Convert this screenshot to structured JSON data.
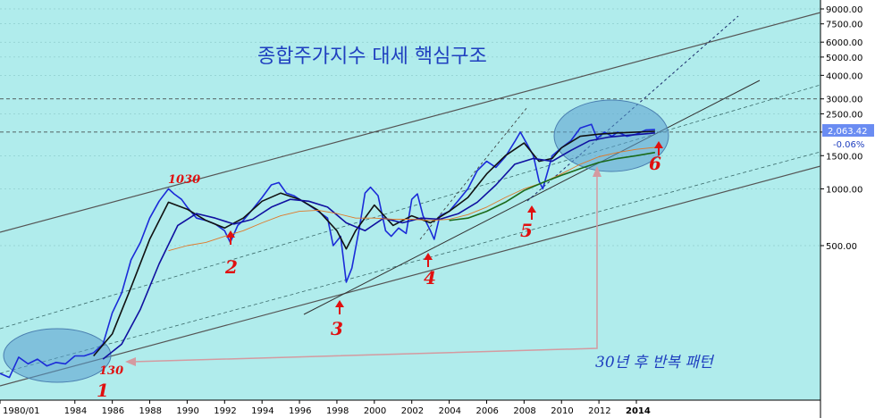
{
  "chart_data": {
    "type": "line",
    "title": "종합주가지수 대세 핵심구조",
    "scale": "log",
    "background": "#b0ecec",
    "yticks": [
      "9000.00",
      "7500.00",
      "6000.00",
      "5000.00",
      "4000.00",
      "3000.00",
      "2500.00",
      "2000.00",
      "1500.00",
      "1000.00",
      "500.00"
    ],
    "ytick_values": [
      9000,
      7500,
      6000,
      5000,
      4000,
      3000,
      2500,
      2000,
      1500,
      1000,
      500
    ],
    "ylim": [
      80,
      10000
    ],
    "xlim": [
      1980.0,
      2016.2
    ],
    "xticks": [
      "1980/01",
      "1984",
      "1986",
      "1988",
      "1990",
      "1992",
      "1994",
      "1996",
      "1998",
      "2000",
      "2002",
      "2004",
      "2006",
      "2008",
      "2010",
      "2012",
      "2014"
    ],
    "xtick_values": [
      1980.0,
      1984.0,
      1986.0,
      1988.0,
      1990.0,
      1992.0,
      1994.0,
      1996.0,
      1998.0,
      2000.0,
      2002.0,
      2004.0,
      2006.0,
      2008.0,
      2010.0,
      2012.0,
      2014.0
    ],
    "last_value": "2,063.42",
    "last_change": "-0.06%",
    "series": [
      {
        "color": "#1b2bd8",
        "x": [
          1980.0,
          1980.5,
          1981.0,
          1981.5,
          1982.0,
          1982.5,
          1983.0,
          1983.5,
          1984.0,
          1984.5,
          1985.0,
          1985.5,
          1986.0,
          1986.5,
          1987.0,
          1987.5,
          1988.0,
          1988.5,
          1989.0,
          1989.3,
          1989.7,
          1990.0,
          1990.5,
          1991.0,
          1991.5,
          1992.0,
          1992.3,
          1992.7,
          1993.0,
          1993.5,
          1994.0,
          1994.5,
          1994.9,
          1995.3,
          1995.7,
          1996.0,
          1996.5,
          1997.0,
          1997.5,
          1997.8,
          1998.2,
          1998.5,
          1998.8,
          1999.2,
          1999.5,
          1999.8,
          2000.2,
          2000.6,
          2000.9,
          2001.3,
          2001.7,
          2002.0,
          2002.3,
          2002.6,
          2003.0,
          2003.2,
          2003.5,
          2004.0,
          2004.5,
          2005.0,
          2005.5,
          2006.0,
          2006.5,
          2007.0,
          2007.5,
          2007.8,
          2008.2,
          2008.5,
          2008.8,
          2009.0,
          2009.5,
          2010.0,
          2010.5,
          2011.0,
          2011.3,
          2011.6,
          2011.9,
          2012.3,
          2012.7,
          2013.0,
          2013.5,
          2014.0,
          2014.5,
          2015.0
        ],
        "values": [
          105,
          100,
          128,
          118,
          125,
          115,
          120,
          118,
          130,
          130,
          135,
          150,
          220,
          280,
          420,
          520,
          700,
          860,
          1000,
          940,
          880,
          800,
          700,
          680,
          650,
          600,
          520,
          640,
          680,
          780,
          900,
          1050,
          1080,
          950,
          920,
          880,
          820,
          760,
          700,
          500,
          560,
          320,
          380,
          620,
          950,
          1020,
          920,
          600,
          560,
          620,
          580,
          880,
          940,
          720,
          600,
          540,
          720,
          760,
          870,
          1000,
          1250,
          1400,
          1300,
          1480,
          1780,
          2000,
          1700,
          1500,
          1100,
          1000,
          1500,
          1650,
          1800,
          2100,
          2150,
          2200,
          1850,
          2000,
          1900,
          2000,
          1900,
          1950,
          2050,
          2063
        ]
      },
      {
        "color": "#111111",
        "x": [
          1985.0,
          1986.0,
          1987.0,
          1988.0,
          1989.0,
          1990.0,
          1991.0,
          1992.0,
          1993.0,
          1994.0,
          1995.0,
          1996.0,
          1997.0,
          1998.0,
          1998.5,
          1999.0,
          2000.0,
          2001.0,
          2002.0,
          2003.0,
          2004.0,
          2005.0,
          2006.0,
          2007.0,
          2008.0,
          2008.8,
          2009.5,
          2010.0,
          2011.0,
          2012.0,
          2013.0,
          2014.0,
          2015.0
        ],
        "values": [
          130,
          170,
          300,
          540,
          850,
          780,
          680,
          620,
          700,
          860,
          950,
          880,
          770,
          600,
          480,
          600,
          820,
          640,
          720,
          660,
          760,
          900,
          1200,
          1500,
          1750,
          1400,
          1450,
          1650,
          1900,
          1950,
          1980,
          2000,
          2020
        ]
      },
      {
        "color": "#1010a0",
        "x": [
          1985.5,
          1986.5,
          1987.5,
          1988.5,
          1989.5,
          1990.5,
          1991.5,
          1992.5,
          1993.5,
          1994.5,
          1995.5,
          1996.5,
          1997.5,
          1998.5,
          1999.5,
          2000.5,
          2001.5,
          2002.5,
          2003.5,
          2004.5,
          2005.5,
          2006.5,
          2007.5,
          2008.5,
          2009.5,
          2010.5,
          2011.5,
          2012.5,
          2013.5,
          2014.5,
          2015.0
        ],
        "values": [
          125,
          150,
          230,
          400,
          640,
          740,
          700,
          650,
          690,
          800,
          880,
          860,
          800,
          660,
          600,
          700,
          660,
          700,
          690,
          740,
          850,
          1050,
          1350,
          1450,
          1400,
          1600,
          1800,
          1880,
          1920,
          1960,
          1980
        ]
      },
      {
        "color": "#e07828",
        "x": [
          1989.0,
          1990.0,
          1991.0,
          1992.0,
          1993.0,
          1994.0,
          1995.0,
          1996.0,
          1997.0,
          1998.0,
          1999.0,
          2000.0,
          2001.0,
          2002.0,
          2003.0,
          2004.0,
          2005.0,
          2006.0,
          2007.0,
          2008.0,
          2009.0,
          2010.0,
          2011.0,
          2012.0,
          2013.0,
          2014.0,
          2015.0
        ],
        "values": [
          470,
          500,
          520,
          560,
          600,
          660,
          720,
          760,
          770,
          740,
          700,
          700,
          690,
          690,
          680,
          690,
          730,
          800,
          900,
          1000,
          1080,
          1200,
          1350,
          1480,
          1560,
          1620,
          1660
        ]
      },
      {
        "color": "#1a6a1a",
        "x": [
          2004.0,
          2005.0,
          2006.0,
          2007.0,
          2008.0,
          2009.0,
          2010.0,
          2011.0,
          2012.0,
          2013.0,
          2014.0,
          2015.0
        ],
        "values": [
          680,
          700,
          760,
          850,
          980,
          1080,
          1180,
          1280,
          1380,
          1450,
          1500,
          1560
        ]
      }
    ],
    "annotations": {
      "numbers": [
        "1",
        "2",
        "3",
        "4",
        "5",
        "6"
      ],
      "values": [
        "1030",
        "130"
      ],
      "repeat_text": "30년 후 반복 패턴"
    }
  }
}
